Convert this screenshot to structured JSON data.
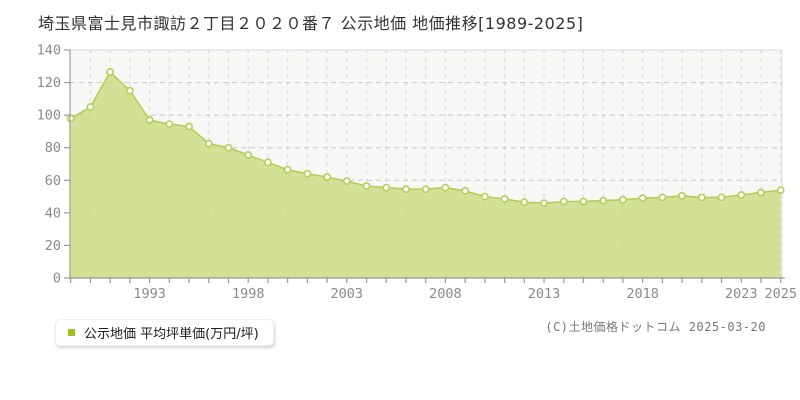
{
  "title": "埼玉県富士見市諏訪２丁目２０２０番７ 公示地価 地価推移[1989-2025]",
  "legend": {
    "label": "公示地価 平均坪単価(万円/坪)",
    "swatch_color": "#9ec41b"
  },
  "copyright": "(C)土地価格ドットコム 2025-03-20",
  "chart_data": {
    "type": "area",
    "title": "埼玉県富士見市諏訪２丁目２０２０番７ 公示地価 地価推移[1989-2025]",
    "series_name": "公示地価 平均坪単価(万円/坪)",
    "xlabel": "",
    "ylabel": "平均坪単価(万円/坪)",
    "x": [
      1989,
      1990,
      1991,
      1992,
      1993,
      1994,
      1995,
      1996,
      1997,
      1998,
      1999,
      2000,
      2001,
      2002,
      2003,
      2004,
      2005,
      2006,
      2007,
      2008,
      2009,
      2010,
      2011,
      2012,
      2013,
      2014,
      2015,
      2016,
      2017,
      2018,
      2019,
      2020,
      2021,
      2022,
      2023,
      2024,
      2025
    ],
    "values": [
      98,
      105,
      126.5,
      115,
      97,
      94.5,
      93,
      82.5,
      80,
      75.5,
      71,
      66.5,
      64,
      62,
      59.5,
      56.5,
      55.5,
      54.5,
      54.5,
      55.5,
      53.5,
      50,
      48.5,
      46.5,
      46,
      47,
      47,
      47.5,
      48,
      49,
      49.5,
      50.5,
      49.5,
      49.5,
      51,
      52.5,
      54
    ],
    "ylim": [
      0,
      140
    ],
    "y_ticks": [
      0,
      20,
      40,
      60,
      80,
      100,
      120,
      140
    ],
    "x_tick_labels": [
      1993,
      1998,
      2003,
      2008,
      2013,
      2018,
      2023,
      2025
    ],
    "grid": true,
    "legend_position": "bottom-left",
    "colors": {
      "area_fill": "#cbdd84",
      "area_fill_opacity": 0.85,
      "line": "#b5ce57",
      "marker_fill": "#ffffff",
      "marker_stroke": "#b5ce57",
      "plot_bg": "#f7f7f6",
      "grid_v": "#d9d9d9",
      "grid_h": "#c9c9c9",
      "axis": "#999999",
      "plot_border": "#dddddd"
    }
  }
}
